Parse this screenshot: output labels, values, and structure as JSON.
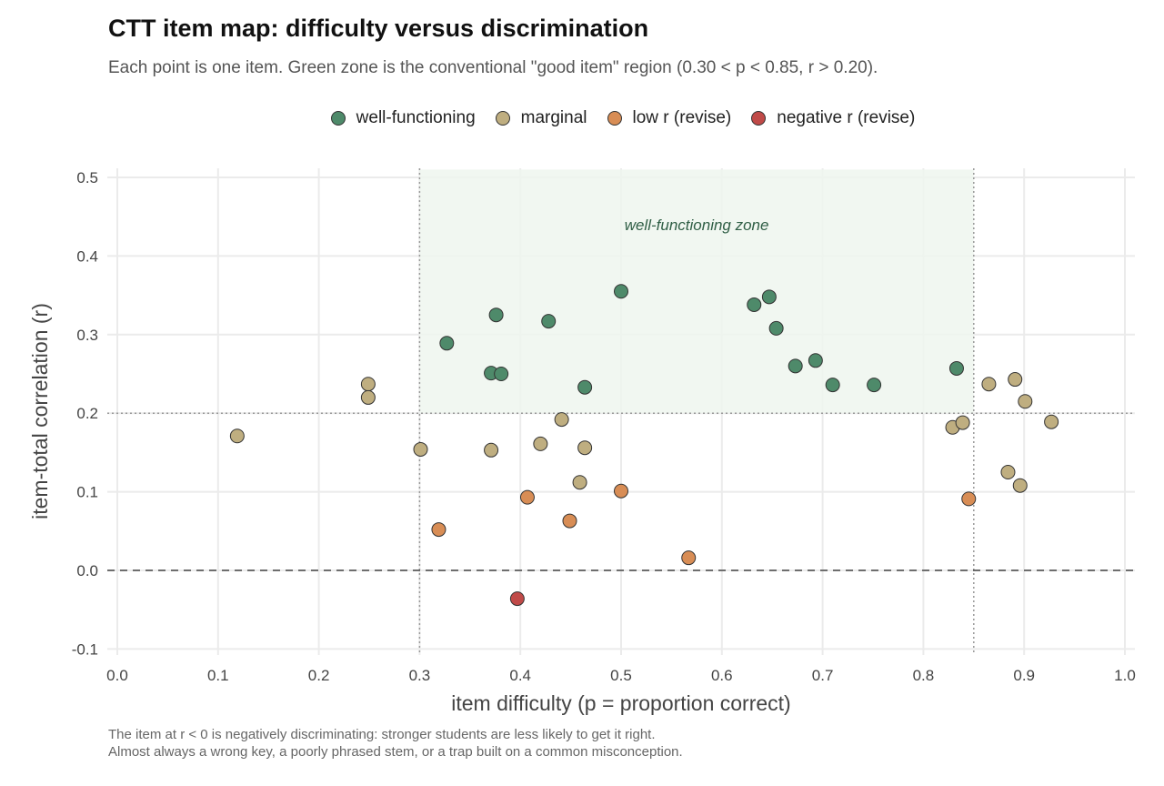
{
  "title": "CTT item map: difficulty versus discrimination",
  "subtitle": "Each point is one item. Green zone is the conventional \"good item\" region (0.30 < p < 0.85, r > 0.20).",
  "caption": [
    "The item at r < 0 is negatively discriminating: stronger students are less likely to get it right.",
    "Almost always a wrong key, a poorly phrased stem, or a trap built on a common misconception."
  ],
  "chart_data": {
    "type": "scatter",
    "xlabel": "item difficulty (p = proportion correct)",
    "ylabel": "item-total correlation (r)",
    "xlim": [
      0,
      1.0
    ],
    "ylim": [
      -0.1,
      0.5
    ],
    "xticks": [
      "0.0",
      "0.1",
      "0.2",
      "0.3",
      "0.4",
      "0.5",
      "0.6",
      "0.7",
      "0.8",
      "0.9",
      "1.0"
    ],
    "yticks": [
      "-0.1",
      "0.0",
      "0.1",
      "0.2",
      "0.3",
      "0.4",
      "0.5"
    ],
    "grid": true,
    "legend_position": "top",
    "zone": {
      "label": "well-functioning zone",
      "x": [
        0.3,
        0.85
      ],
      "y": [
        0.2,
        0.51
      ],
      "color": "#eef6ee"
    },
    "reference_lines": {
      "vertical_dotted": [
        0.3,
        0.85
      ],
      "horizontal_dotted": 0.2,
      "horizontal_dashed": 0.0
    },
    "series": [
      {
        "name": "well-functioning",
        "color": "#4e8a6a",
        "points": [
          [
            0.327,
            0.289
          ],
          [
            0.376,
            0.325
          ],
          [
            0.371,
            0.251
          ],
          [
            0.381,
            0.25
          ],
          [
            0.428,
            0.317
          ],
          [
            0.464,
            0.233
          ],
          [
            0.5,
            0.355
          ],
          [
            0.632,
            0.338
          ],
          [
            0.647,
            0.348
          ],
          [
            0.654,
            0.308
          ],
          [
            0.673,
            0.26
          ],
          [
            0.693,
            0.267
          ],
          [
            0.71,
            0.236
          ],
          [
            0.751,
            0.236
          ],
          [
            0.833,
            0.257
          ]
        ]
      },
      {
        "name": "marginal",
        "color": "#bfae80",
        "points": [
          [
            0.119,
            0.171
          ],
          [
            0.249,
            0.237
          ],
          [
            0.249,
            0.22
          ],
          [
            0.301,
            0.154
          ],
          [
            0.371,
            0.153
          ],
          [
            0.42,
            0.161
          ],
          [
            0.441,
            0.192
          ],
          [
            0.464,
            0.156
          ],
          [
            0.459,
            0.112
          ],
          [
            0.829,
            0.182
          ],
          [
            0.839,
            0.188
          ],
          [
            0.865,
            0.237
          ],
          [
            0.891,
            0.243
          ],
          [
            0.901,
            0.215
          ],
          [
            0.927,
            0.189
          ],
          [
            0.884,
            0.125
          ],
          [
            0.896,
            0.108
          ]
        ]
      },
      {
        "name": "low r (revise)",
        "color": "#d88d55",
        "points": [
          [
            0.319,
            0.052
          ],
          [
            0.407,
            0.093
          ],
          [
            0.449,
            0.063
          ],
          [
            0.5,
            0.101
          ],
          [
            0.567,
            0.016
          ],
          [
            0.845,
            0.091
          ]
        ]
      },
      {
        "name": "negative r (revise)",
        "color": "#c04a48",
        "points": [
          [
            0.397,
            -0.036
          ]
        ]
      }
    ]
  }
}
